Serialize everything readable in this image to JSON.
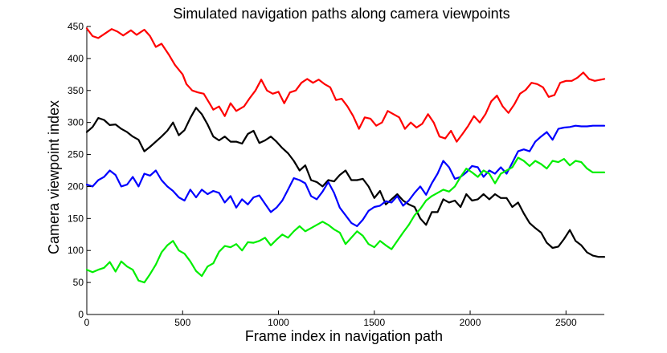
{
  "chart_data": {
    "type": "line",
    "title": "Simulated navigation paths along camera viewpoints",
    "xlabel": "Frame index in navigation path",
    "ylabel": "Camera viewpoint index",
    "xlim": [
      0,
      2700
    ],
    "ylim": [
      0,
      450
    ],
    "xticks": [
      0,
      500,
      1000,
      1500,
      2000,
      2500
    ],
    "yticks": [
      0,
      50,
      100,
      150,
      200,
      250,
      300,
      350,
      400,
      450
    ],
    "grid": false,
    "series": [
      {
        "color": "#ff0000",
        "x": [
          0,
          30,
          60,
          90,
          130,
          160,
          190,
          230,
          260,
          300,
          330,
          360,
          390,
          430,
          460,
          500,
          520,
          550,
          580,
          610,
          640,
          660,
          690,
          720,
          750,
          780,
          820,
          850,
          880,
          910,
          940,
          970,
          1000,
          1030,
          1060,
          1090,
          1120,
          1150,
          1180,
          1210,
          1240,
          1270,
          1300,
          1330,
          1360,
          1390,
          1420,
          1450,
          1480,
          1510,
          1540,
          1570,
          1600,
          1630,
          1660,
          1690,
          1720,
          1750,
          1780,
          1810,
          1840,
          1870,
          1900,
          1930,
          1960,
          1990,
          2020,
          2050,
          2080,
          2110,
          2140,
          2170,
          2200,
          2230,
          2260,
          2290,
          2320,
          2350,
          2380,
          2410,
          2440,
          2470,
          2500,
          2530,
          2560,
          2590,
          2620,
          2650,
          2700
        ],
        "y": [
          447,
          435,
          432,
          438,
          446,
          442,
          436,
          444,
          437,
          445,
          435,
          418,
          423,
          405,
          390,
          375,
          360,
          350,
          347,
          345,
          330,
          320,
          325,
          310,
          330,
          318,
          325,
          338,
          350,
          367,
          350,
          345,
          348,
          330,
          347,
          350,
          362,
          368,
          362,
          367,
          360,
          355,
          335,
          337,
          325,
          310,
          290,
          308,
          306,
          295,
          300,
          318,
          313,
          308,
          290,
          300,
          292,
          298,
          313,
          300,
          278,
          275,
          287,
          270,
          282,
          295,
          310,
          300,
          313,
          333,
          342,
          325,
          315,
          328,
          345,
          351,
          362,
          360,
          355,
          340,
          343,
          362,
          365,
          365,
          370,
          378,
          368,
          365,
          368
        ]
      },
      {
        "color": "#000000",
        "x": [
          0,
          30,
          60,
          90,
          120,
          150,
          180,
          210,
          240,
          270,
          300,
          330,
          360,
          390,
          420,
          450,
          480,
          510,
          540,
          570,
          600,
          630,
          660,
          690,
          720,
          750,
          780,
          810,
          840,
          870,
          900,
          930,
          960,
          990,
          1020,
          1050,
          1080,
          1110,
          1140,
          1170,
          1200,
          1230,
          1260,
          1290,
          1320,
          1350,
          1380,
          1410,
          1440,
          1470,
          1500,
          1530,
          1560,
          1590,
          1620,
          1650,
          1680,
          1710,
          1740,
          1770,
          1800,
          1830,
          1860,
          1890,
          1920,
          1950,
          1980,
          2010,
          2040,
          2070,
          2100,
          2130,
          2160,
          2190,
          2220,
          2250,
          2280,
          2310,
          2340,
          2370,
          2400,
          2430,
          2460,
          2490,
          2520,
          2550,
          2580,
          2610,
          2640,
          2670,
          2700
        ],
        "y": [
          285,
          293,
          307,
          304,
          296,
          297,
          290,
          285,
          278,
          273,
          255,
          262,
          270,
          278,
          287,
          300,
          280,
          288,
          307,
          323,
          313,
          297,
          278,
          272,
          278,
          270,
          270,
          267,
          282,
          287,
          268,
          272,
          278,
          270,
          260,
          252,
          240,
          225,
          233,
          210,
          207,
          200,
          210,
          208,
          218,
          225,
          210,
          210,
          212,
          200,
          182,
          193,
          172,
          180,
          188,
          178,
          172,
          168,
          150,
          140,
          160,
          160,
          180,
          175,
          178,
          168,
          188,
          178,
          180,
          188,
          180,
          188,
          182,
          182,
          168,
          175,
          158,
          143,
          135,
          128,
          112,
          104,
          106,
          118,
          132,
          115,
          108,
          97,
          92,
          90,
          90
        ]
      },
      {
        "color": "#0000ff",
        "x": [
          0,
          30,
          60,
          90,
          120,
          150,
          180,
          210,
          240,
          270,
          300,
          330,
          360,
          390,
          420,
          450,
          480,
          510,
          540,
          570,
          600,
          630,
          660,
          690,
          720,
          750,
          780,
          810,
          840,
          870,
          900,
          930,
          960,
          990,
          1020,
          1050,
          1080,
          1110,
          1140,
          1170,
          1200,
          1230,
          1260,
          1290,
          1320,
          1350,
          1380,
          1410,
          1440,
          1470,
          1500,
          1530,
          1560,
          1590,
          1620,
          1650,
          1680,
          1710,
          1740,
          1770,
          1800,
          1830,
          1860,
          1890,
          1920,
          1950,
          1980,
          2010,
          2040,
          2070,
          2100,
          2130,
          2160,
          2190,
          2220,
          2250,
          2280,
          2310,
          2340,
          2370,
          2400,
          2430,
          2460,
          2490,
          2520,
          2550,
          2580,
          2610,
          2640,
          2670,
          2700
        ],
        "y": [
          203,
          200,
          210,
          215,
          225,
          218,
          200,
          203,
          215,
          200,
          220,
          217,
          225,
          210,
          200,
          193,
          183,
          178,
          195,
          183,
          195,
          188,
          193,
          190,
          175,
          185,
          167,
          180,
          172,
          183,
          186,
          173,
          160,
          167,
          178,
          195,
          213,
          210,
          205,
          185,
          180,
          192,
          207,
          190,
          167,
          155,
          143,
          138,
          148,
          162,
          168,
          170,
          177,
          175,
          185,
          170,
          178,
          190,
          200,
          187,
          205,
          220,
          240,
          230,
          212,
          215,
          222,
          232,
          230,
          215,
          225,
          220,
          230,
          220,
          237,
          255,
          258,
          255,
          270,
          278,
          285,
          273,
          290,
          292,
          293,
          295,
          294,
          294,
          295,
          295,
          295
        ]
      },
      {
        "color": "#00ee00",
        "x": [
          0,
          30,
          60,
          90,
          120,
          150,
          180,
          210,
          240,
          270,
          300,
          330,
          360,
          390,
          420,
          450,
          480,
          510,
          540,
          570,
          600,
          630,
          660,
          690,
          720,
          750,
          780,
          810,
          840,
          870,
          900,
          930,
          960,
          990,
          1020,
          1050,
          1080,
          1110,
          1140,
          1170,
          1200,
          1230,
          1260,
          1290,
          1320,
          1350,
          1380,
          1410,
          1440,
          1470,
          1500,
          1530,
          1560,
          1590,
          1620,
          1650,
          1680,
          1710,
          1740,
          1770,
          1800,
          1830,
          1860,
          1890,
          1920,
          1950,
          1980,
          2010,
          2040,
          2070,
          2100,
          2130,
          2160,
          2190,
          2220,
          2250,
          2280,
          2310,
          2340,
          2370,
          2400,
          2430,
          2460,
          2490,
          2520,
          2550,
          2580,
          2610,
          2640,
          2670,
          2700
        ],
        "y": [
          70,
          66,
          70,
          73,
          82,
          67,
          83,
          75,
          70,
          53,
          50,
          63,
          78,
          97,
          108,
          115,
          100,
          95,
          83,
          68,
          60,
          75,
          80,
          98,
          107,
          105,
          110,
          100,
          113,
          112,
          115,
          120,
          108,
          117,
          125,
          120,
          130,
          138,
          130,
          135,
          140,
          145,
          140,
          133,
          128,
          110,
          120,
          130,
          123,
          110,
          105,
          115,
          108,
          102,
          115,
          128,
          140,
          155,
          165,
          178,
          185,
          190,
          195,
          192,
          200,
          215,
          228,
          222,
          215,
          225,
          220,
          205,
          220,
          225,
          230,
          245,
          240,
          232,
          240,
          235,
          228,
          240,
          238,
          243,
          233,
          240,
          238,
          228,
          222,
          222,
          222
        ]
      }
    ]
  }
}
